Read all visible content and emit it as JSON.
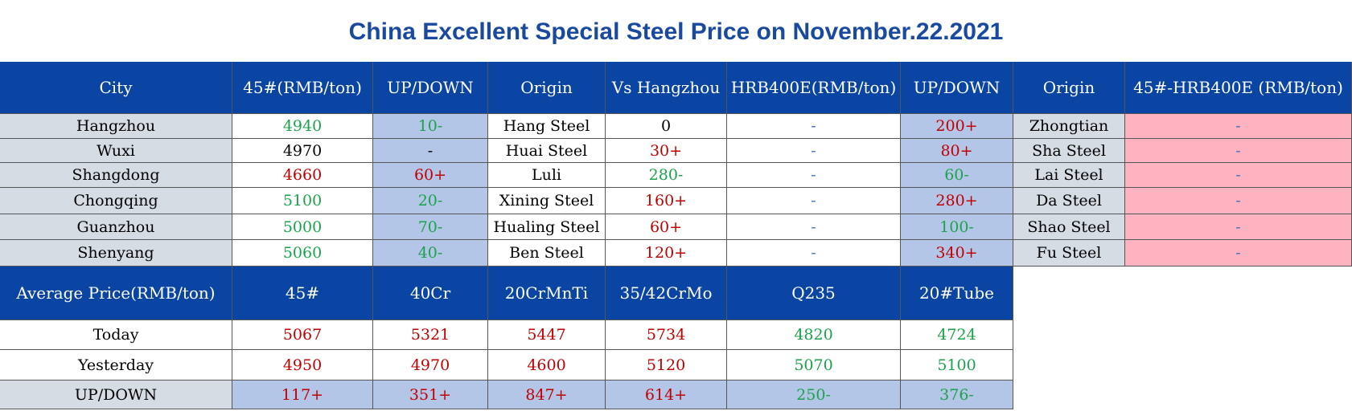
{
  "title": "China Excellent Special Steel Price on November.22.2021",
  "table1": {
    "header": [
      "City",
      "45#(RMB/ton)",
      "UP/DOWN",
      "Origin",
      "Vs Hangzhou",
      "HRB400E(RMB/ton)",
      "UP/DOWN",
      "Origin",
      "45#-HRB400E (RMB/ton)"
    ],
    "rows": [
      [
        "Hangzhou",
        "4940",
        "10-",
        "Hang Steel",
        "0",
        "-",
        "200+",
        "Zhongtian",
        "-"
      ],
      [
        "Wuxi",
        "4970",
        "-",
        "Huai Steel",
        "30+",
        "-",
        "80+",
        "Sha Steel",
        "-"
      ],
      [
        "Shangdong",
        "4660",
        "60+",
        "Luli",
        "280-",
        "-",
        "60-",
        "Lai Steel",
        "-"
      ],
      [
        "Chongqing",
        "5100",
        "20-",
        "Xining Steel",
        "160+",
        "-",
        "280+",
        "Da Steel",
        "-"
      ],
      [
        "Guanzhou",
        "5000",
        "70-",
        "Hualing Steel",
        "60+",
        "-",
        "100-",
        "Shao Steel",
        "-"
      ],
      [
        "Shenyang",
        "5060",
        "40-",
        "Ben Steel",
        "120+",
        "-",
        "340+",
        "Fu Steel",
        "-"
      ]
    ]
  },
  "table2": {
    "header": [
      "Average Price(RMB/ton)",
      "45#",
      "40Cr",
      "20CrMnTi",
      "35/42CrMo",
      "Q235",
      "20#Tube"
    ],
    "rows": [
      [
        "Today",
        "5067",
        "5321",
        "5447",
        "5734",
        "4820",
        "4724"
      ],
      [
        "Yesterday",
        "4950",
        "4970",
        "4600",
        "5120",
        "5070",
        "5100"
      ],
      [
        "UP/DOWN",
        "117+",
        "351+",
        "847+",
        "614+",
        "250-",
        "376-"
      ]
    ]
  }
}
